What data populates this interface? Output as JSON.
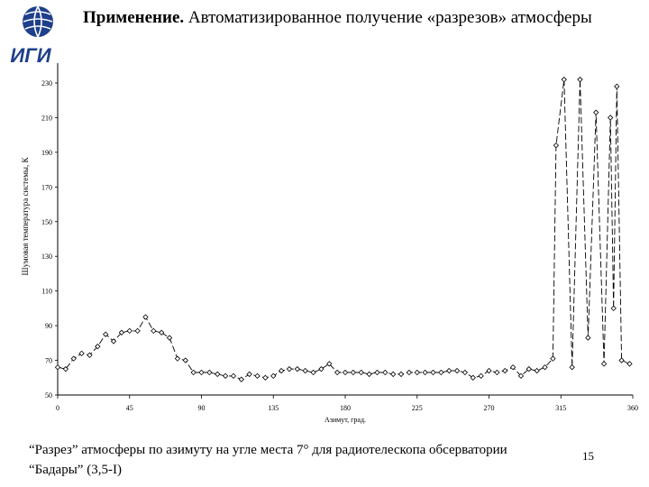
{
  "header": {
    "title_bold": "Применение.",
    "title_rest": "Автоматизированное получение «разрезов» атмосферы",
    "logo_text": "ИГИ"
  },
  "chart_data": {
    "type": "line",
    "xlabel": "Азимут, град.",
    "ylabel": "Шумовая температура системы, К",
    "xlim": [
      0,
      360
    ],
    "ylim": [
      50,
      230
    ],
    "x_ticks": [
      0,
      45,
      90,
      135,
      180,
      225,
      270,
      315,
      360
    ],
    "y_ticks": [
      50,
      70,
      90,
      110,
      130,
      150,
      170,
      190,
      210,
      230
    ],
    "grid": false,
    "series": [
      {
        "marker": "diamond",
        "points": [
          [
            0,
            66
          ],
          [
            5,
            65
          ],
          [
            10,
            71
          ],
          [
            15,
            74
          ],
          [
            20,
            73
          ],
          [
            25,
            78
          ],
          [
            30,
            85
          ],
          [
            35,
            81
          ],
          [
            40,
            86
          ],
          [
            45,
            87
          ],
          [
            50,
            87
          ],
          [
            55,
            95
          ],
          [
            60,
            87
          ],
          [
            65,
            86
          ],
          [
            70,
            83
          ],
          [
            75,
            71
          ],
          [
            80,
            70
          ],
          [
            85,
            63
          ],
          [
            90,
            63
          ],
          [
            95,
            63
          ],
          [
            100,
            62
          ],
          [
            105,
            61
          ],
          [
            110,
            61
          ],
          [
            115,
            59
          ],
          [
            120,
            62
          ],
          [
            125,
            61
          ],
          [
            130,
            60
          ],
          [
            135,
            61
          ],
          [
            140,
            64
          ],
          [
            145,
            65
          ],
          [
            150,
            65
          ],
          [
            155,
            64
          ],
          [
            160,
            63
          ],
          [
            165,
            65
          ],
          [
            170,
            68
          ],
          [
            175,
            63
          ],
          [
            180,
            63
          ],
          [
            185,
            63
          ],
          [
            190,
            63
          ],
          [
            195,
            62
          ],
          [
            200,
            63
          ],
          [
            205,
            63
          ],
          [
            210,
            62
          ],
          [
            215,
            62
          ],
          [
            220,
            63
          ],
          [
            225,
            63
          ],
          [
            230,
            63
          ],
          [
            235,
            63
          ],
          [
            240,
            63
          ],
          [
            245,
            64
          ],
          [
            250,
            64
          ],
          [
            255,
            63
          ],
          [
            260,
            60
          ],
          [
            265,
            61
          ],
          [
            270,
            64
          ],
          [
            275,
            63
          ],
          [
            280,
            64
          ],
          [
            285,
            66
          ],
          [
            290,
            61
          ],
          [
            295,
            65
          ],
          [
            300,
            64
          ],
          [
            305,
            66
          ],
          [
            310,
            71
          ],
          [
            312,
            194
          ],
          [
            317,
            232
          ],
          [
            322,
            66
          ],
          [
            327,
            232
          ],
          [
            332,
            83
          ],
          [
            337,
            213
          ],
          [
            342,
            68
          ],
          [
            346,
            210
          ],
          [
            348,
            100
          ],
          [
            350,
            228
          ],
          [
            353,
            70
          ],
          [
            358,
            68
          ]
        ]
      }
    ]
  },
  "caption": {
    "line1": "“Разрез” атмосферы по азимуту на угле места 7° для радиотелескопа обсерватории",
    "line2": "“Бадары” (3,5-I)"
  },
  "page_number": "15"
}
